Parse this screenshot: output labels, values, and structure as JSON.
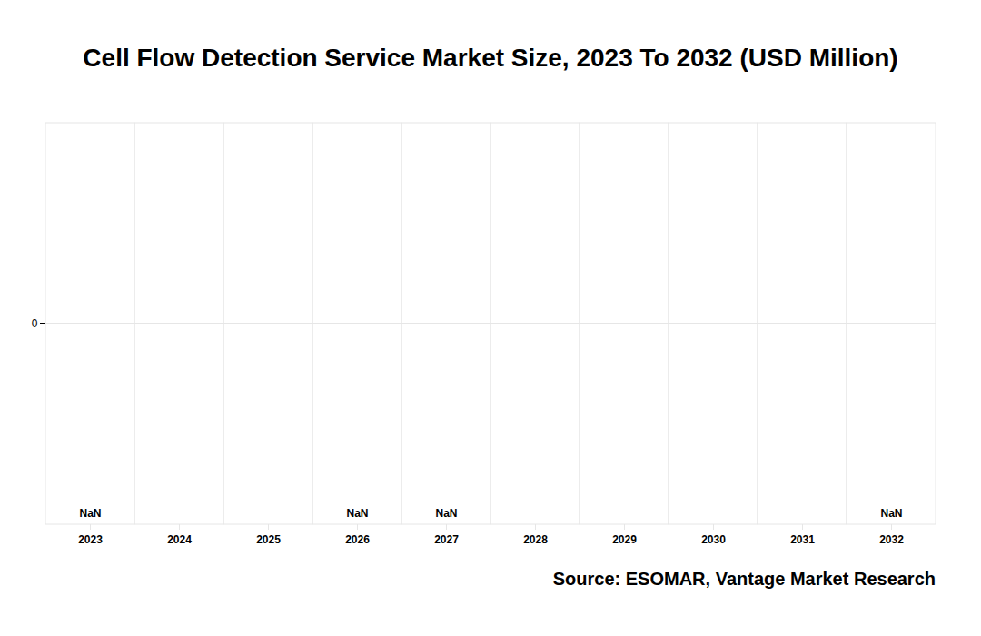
{
  "chart_data": {
    "type": "bar",
    "title": "Cell Flow Detection Service Market Size, 2023 To 2032 (USD Million)",
    "source": "Source: ESOMAR, Vantage Market Research",
    "categories": [
      "2023",
      "2024",
      "2025",
      "2026",
      "2027",
      "2028",
      "2029",
      "2030",
      "2031",
      "2032"
    ],
    "values": [
      null,
      null,
      null,
      null,
      null,
      null,
      null,
      null,
      null,
      null
    ],
    "value_labels": [
      "NaN",
      null,
      null,
      "NaN",
      "NaN",
      null,
      null,
      null,
      null,
      "NaN"
    ],
    "data_labels": true,
    "grid": true,
    "tick_labels": "x",
    "color": "#1f77b4"
  }
}
